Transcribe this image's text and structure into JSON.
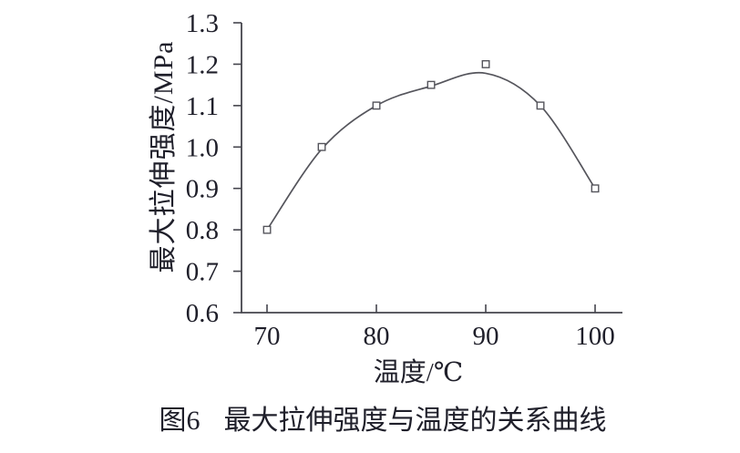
{
  "figure": {
    "caption_prefix": "图6",
    "caption_text": "最大拉伸强度与温度的关系曲线"
  },
  "chart_data": {
    "type": "line",
    "title": "",
    "xlabel": "温度/℃",
    "ylabel": "最大拉伸强度/MPa",
    "x": [
      70,
      75,
      80,
      85,
      90,
      95,
      100
    ],
    "series": [
      {
        "name": "最大拉伸强度",
        "values": [
          0.8,
          1.0,
          1.1,
          1.15,
          1.2,
          1.1,
          0.9
        ]
      }
    ],
    "fitted_curve_values": [
      0.8,
      0.995,
      1.1,
      1.147,
      1.178,
      1.1,
      0.9
    ],
    "x_ticks": [
      70,
      80,
      90,
      100
    ],
    "y_ticks": [
      0.6,
      0.7,
      0.8,
      0.9,
      1.0,
      1.1,
      1.2,
      1.3
    ],
    "xlim": [
      70,
      100
    ],
    "ylim": [
      0.6,
      1.3
    ],
    "grid": false,
    "legend": "none",
    "marker": "open-square",
    "colors": {
      "line": "#55555c",
      "axis": "#45454d",
      "text": "#1f1f2a"
    }
  }
}
